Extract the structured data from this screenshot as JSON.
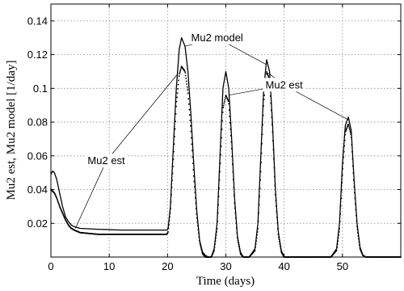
{
  "chart_data": {
    "type": "line",
    "title": "",
    "xlabel": "Time (days)",
    "ylabel": "Mu2 est, Mu2 model [1/day]",
    "xlim": [
      0,
      60
    ],
    "ylim": [
      0,
      0.15
    ],
    "xticks": [
      0,
      10,
      20,
      30,
      40,
      50
    ],
    "yticks": [
      0.02,
      0.04,
      0.06,
      0.08,
      0.1,
      0.12,
      0.14
    ],
    "xtick_labels": [
      "0",
      "10",
      "20",
      "30",
      "40",
      "50"
    ],
    "ytick_labels": [
      "0.02",
      "0.04",
      "0.06",
      "0.08",
      "0.1",
      "0.12",
      "0.14"
    ],
    "grid": true,
    "legend": "none",
    "series": [
      {
        "name": "Mu2 model",
        "style": "solid-line",
        "color": "#000000",
        "x": [
          0,
          0.3,
          0.6,
          1,
          1.5,
          2,
          2.5,
          3,
          3.5,
          4,
          5,
          8,
          12,
          16,
          19.9,
          20.1,
          20.5,
          21,
          21.5,
          22,
          22.4,
          23,
          23.5,
          24,
          24.5,
          25,
          25.5,
          26,
          26.5,
          27,
          27.5,
          28,
          28.5,
          29,
          29.5,
          30,
          30.5,
          31,
          31.5,
          32,
          32.5,
          33,
          34,
          35,
          35.5,
          36,
          36.5,
          37,
          37.5,
          38,
          38.5,
          39,
          39.5,
          40,
          41,
          45,
          48,
          49,
          49.5,
          50,
          50.5,
          51,
          51.5,
          52,
          52.5,
          53,
          53.5,
          54,
          55,
          60
        ],
        "y": [
          0.049,
          0.051,
          0.05,
          0.046,
          0.038,
          0.03,
          0.024,
          0.021,
          0.019,
          0.018,
          0.017,
          0.0165,
          0.016,
          0.016,
          0.016,
          0.017,
          0.03,
          0.065,
          0.1,
          0.123,
          0.13,
          0.125,
          0.11,
          0.085,
          0.055,
          0.028,
          0.01,
          0.003,
          0.001,
          0.0,
          0.0,
          0.005,
          0.02,
          0.06,
          0.1,
          0.11,
          0.1,
          0.07,
          0.035,
          0.012,
          0.003,
          0.0,
          0.0,
          0.005,
          0.02,
          0.06,
          0.1,
          0.117,
          0.11,
          0.08,
          0.04,
          0.015,
          0.004,
          0.0,
          0.0,
          0.0,
          0.0,
          0.005,
          0.02,
          0.055,
          0.078,
          0.083,
          0.075,
          0.045,
          0.02,
          0.006,
          0.001,
          0.0,
          0.0,
          0.0
        ]
      },
      {
        "name": "Mu2 est",
        "style": "dots",
        "color": "#000000",
        "x": [
          0,
          0.3,
          0.6,
          1,
          1.5,
          2,
          2.5,
          3,
          3.5,
          4,
          5,
          8,
          12,
          16,
          19.9,
          20.1,
          20.5,
          21,
          21.5,
          22,
          22.4,
          23,
          23.5,
          24,
          24.5,
          25,
          25.5,
          26,
          26.5,
          27,
          27.5,
          28,
          28.5,
          29,
          29.5,
          30,
          30.5,
          31,
          31.5,
          32,
          32.5,
          33,
          34,
          35,
          35.5,
          36,
          36.5,
          37,
          37.5,
          38,
          38.5,
          39,
          39.5,
          40,
          41,
          45,
          48,
          49,
          49.5,
          50,
          50.5,
          51,
          51.5,
          52,
          52.5,
          53,
          53.5,
          54,
          55,
          60
        ],
        "y": [
          0.04,
          0.039,
          0.038,
          0.035,
          0.03,
          0.026,
          0.022,
          0.019,
          0.017,
          0.016,
          0.0145,
          0.0135,
          0.0135,
          0.0135,
          0.0135,
          0.015,
          0.028,
          0.058,
          0.09,
          0.108,
          0.113,
          0.11,
          0.098,
          0.075,
          0.048,
          0.025,
          0.009,
          0.002,
          0.0,
          0.0,
          0.0,
          0.004,
          0.017,
          0.052,
          0.088,
          0.096,
          0.092,
          0.065,
          0.032,
          0.011,
          0.002,
          0.0,
          0.0,
          0.004,
          0.017,
          0.052,
          0.092,
          0.11,
          0.105,
          0.075,
          0.037,
          0.013,
          0.003,
          0.0,
          0.0,
          0.0,
          0.0,
          0.004,
          0.017,
          0.05,
          0.074,
          0.079,
          0.072,
          0.042,
          0.018,
          0.005,
          0.001,
          0.0,
          0.0,
          0.0
        ]
      }
    ],
    "annotations": [
      {
        "text": "Mu2 est",
        "pos": [
          9.5,
          0.055
        ],
        "arrows_to": [
          [
            4.2,
            0.017
          ],
          [
            21.6,
            0.108
          ]
        ]
      },
      {
        "text": "Mu2 model",
        "pos": [
          28.5,
          0.128
        ],
        "arrows_to": [
          [
            23.0,
            0.125
          ],
          [
            37.0,
            0.114
          ]
        ]
      },
      {
        "text": "Mu2 est",
        "pos": [
          40.0,
          0.1
        ],
        "arrows_to": [
          [
            30.5,
            0.096
          ],
          [
            37.3,
            0.109
          ],
          [
            51.2,
            0.081
          ]
        ]
      }
    ]
  }
}
